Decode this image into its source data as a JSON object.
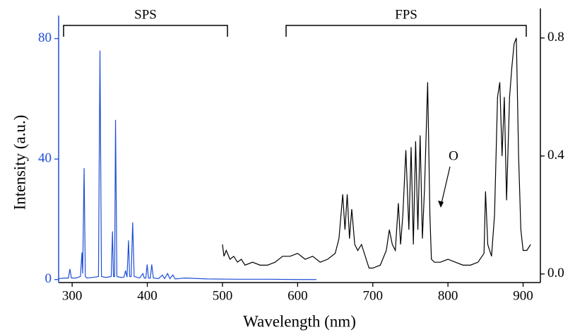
{
  "chart_data": {
    "type": "line",
    "x_label": "Wavelength (nm)",
    "y_label": "Intensity (a.u.)",
    "xlim": [
      282,
      923
    ],
    "xticks": [
      300,
      400,
      500,
      600,
      700,
      800,
      900
    ],
    "ylim": [
      -1,
      90
    ],
    "yticks": [
      0,
      40,
      80
    ],
    "y2lim": [
      -0.029,
      0.9
    ],
    "y2ticks": [
      {
        "value": 0,
        "label": "0.0"
      },
      0.4,
      0.8
    ],
    "y_color": "#1f4fd8",
    "annotations": [
      "SPS",
      "FPS",
      "O"
    ],
    "series": [
      {
        "color": "#1f4fd8",
        "axis": "y",
        "x": [
          282,
          290,
          295,
          297,
          299,
          305,
          311,
          313,
          314,
          315.9,
          317.5,
          320,
          330,
          335,
          337,
          339,
          345,
          352,
          353.7,
          355,
          356.5,
          357.7,
          359.5,
          365,
          369,
          371,
          373,
          375,
          376.5,
          378.5,
          380.5,
          382.5,
          390,
          394,
          396,
          398,
          399.8,
          401.5,
          404,
          405.9,
          408,
          415,
          420,
          423,
          427,
          430,
          434,
          437,
          450,
          480,
          520,
          560,
          600,
          625
        ],
        "values": [
          0.3,
          0.5,
          0.5,
          3.5,
          0.5,
          0.5,
          1,
          9,
          2,
          37,
          1,
          0.5,
          0.8,
          1,
          76,
          1,
          0.7,
          1,
          16,
          1,
          1,
          53,
          1,
          0.7,
          0.8,
          3,
          0.8,
          13,
          1,
          1,
          19,
          1,
          0.5,
          2,
          0.5,
          0.5,
          5,
          0.5,
          0.5,
          5,
          0.5,
          0.3,
          1.5,
          0.3,
          2,
          0.3,
          1.5,
          0.2,
          0.5,
          0.2,
          0.1,
          0.1,
          0,
          0
        ]
      },
      {
        "color": "#000000",
        "axis": "y2",
        "x": [
          500,
          502,
          505,
          510,
          515,
          520,
          525,
          530,
          540,
          550,
          560,
          570,
          580,
          590,
          600,
          610,
          620,
          630,
          640,
          650,
          655,
          660,
          663,
          666,
          669,
          672,
          676,
          680,
          685,
          690,
          695,
          700,
          710,
          718,
          722,
          726,
          730,
          734,
          737,
          740,
          744,
          748,
          751,
          754,
          757,
          760,
          763,
          766,
          769,
          773,
          776,
          778,
          782,
          790,
          800,
          810,
          820,
          830,
          840,
          848,
          850,
          853,
          858,
          862,
          866,
          869,
          872,
          875,
          878,
          882,
          885,
          888,
          891,
          894,
          897,
          900,
          905,
          910
        ],
        "values": [
          0.1,
          0.06,
          0.08,
          0.05,
          0.06,
          0.04,
          0.05,
          0.03,
          0.04,
          0.03,
          0.03,
          0.04,
          0.06,
          0.06,
          0.07,
          0.05,
          0.06,
          0.04,
          0.05,
          0.07,
          0.12,
          0.27,
          0.15,
          0.27,
          0.12,
          0.22,
          0.1,
          0.08,
          0.1,
          0.06,
          0.02,
          0.02,
          0.03,
          0.08,
          0.15,
          0.1,
          0.08,
          0.24,
          0.1,
          0.2,
          0.42,
          0.15,
          0.43,
          0.1,
          0.45,
          0.15,
          0.47,
          0.12,
          0.3,
          0.65,
          0.2,
          0.05,
          0.04,
          0.04,
          0.05,
          0.04,
          0.03,
          0.03,
          0.04,
          0.07,
          0.28,
          0.1,
          0.06,
          0.2,
          0.6,
          0.65,
          0.4,
          0.6,
          0.25,
          0.6,
          0.7,
          0.78,
          0.8,
          0.4,
          0.15,
          0.08,
          0.08,
          0.1
        ]
      }
    ]
  }
}
